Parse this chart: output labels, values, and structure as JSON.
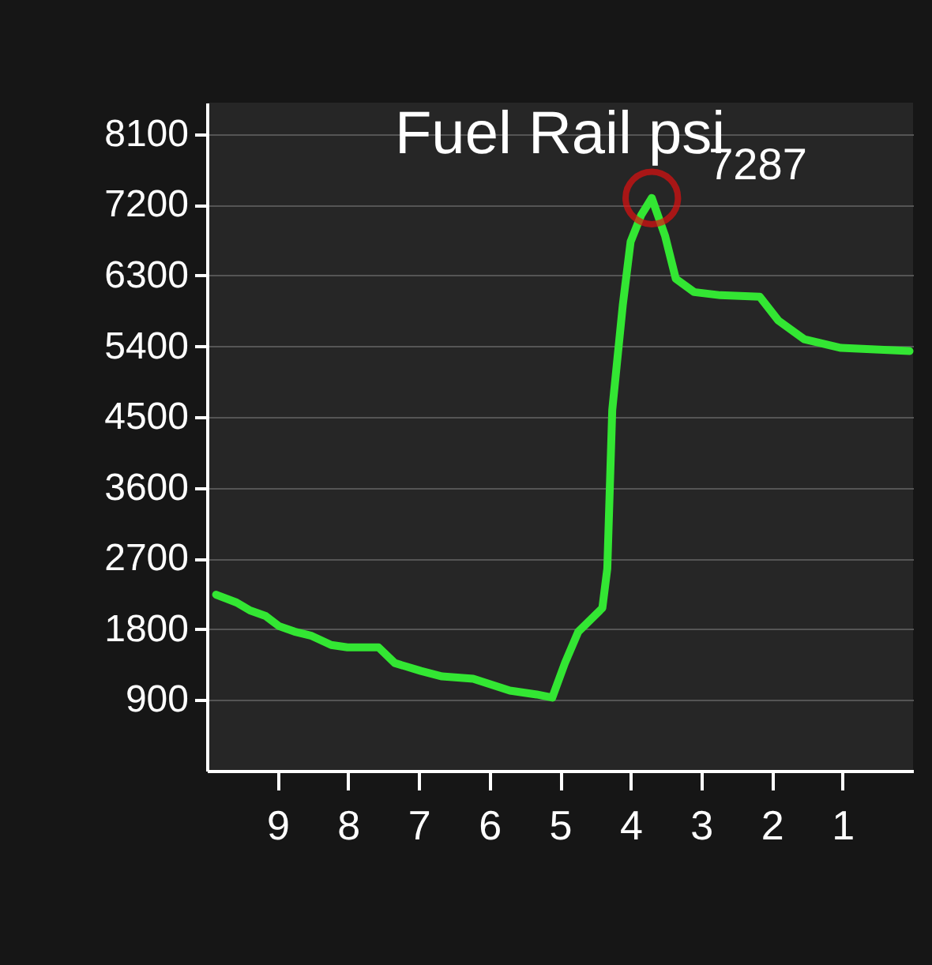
{
  "chart_data": {
    "type": "line",
    "title": "Fuel Rail  psi",
    "x": [
      9.87,
      9.58,
      9.39,
      9.17,
      8.98,
      8.76,
      8.53,
      8.24,
      8.01,
      7.57,
      7.34,
      6.97,
      6.67,
      6.23,
      5.71,
      5.33,
      5.11,
      4.93,
      4.74,
      4.4,
      4.33,
      4.26,
      4.11,
      4.0,
      3.85,
      3.7,
      3.51,
      3.36,
      3.1,
      2.73,
      2.17,
      1.91,
      1.54,
      1.02,
      0.05
    ],
    "series": [
      {
        "color": "#33e633",
        "values": [
          2240,
          2140,
          2040,
          1970,
          1840,
          1770,
          1720,
          1600,
          1570,
          1570,
          1370,
          1270,
          1200,
          1170,
          1020,
          970,
          930,
          1370,
          1770,
          2070,
          2570,
          4590,
          5930,
          6730,
          7070,
          7287,
          6800,
          6260,
          6090,
          6050,
          6030,
          5730,
          5490,
          5380,
          5340
        ]
      }
    ],
    "xlim": [
      10,
      0
    ],
    "xticks": [
      9,
      8,
      7,
      6,
      5,
      4,
      3,
      2,
      1
    ],
    "ylim": [
      0,
      8500
    ],
    "yticks": [
      900,
      1800,
      2700,
      3600,
      4500,
      5400,
      6300,
      7200,
      8100
    ],
    "grid": "y",
    "marker": "none",
    "line_style": "solid",
    "annotations": [
      {
        "text": "7287",
        "x": 3.7,
        "y": 7287
      }
    ]
  }
}
